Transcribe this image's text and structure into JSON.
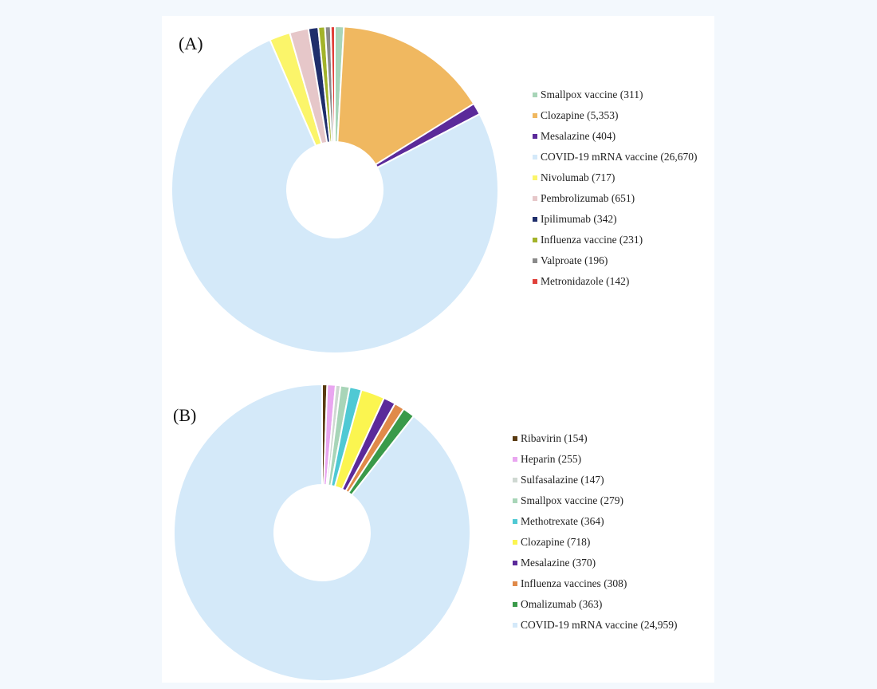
{
  "panels": {
    "a_label": "(A)",
    "b_label": "(B)"
  },
  "chart_data": [
    {
      "type": "pie",
      "donut": true,
      "panel": "(A)",
      "legend_position": "right",
      "start_angle_deg": 0,
      "direction": "clockwise",
      "slices": [
        {
          "label": "Smallpox vaccine (311)",
          "value": 311,
          "color": "#a8d5b8"
        },
        {
          "label": "Clozapine (5,353)",
          "value": 5353,
          "color": "#f0b860"
        },
        {
          "label": "Mesalazine (404)",
          "value": 404,
          "color": "#5b2a9a"
        },
        {
          "label": "COVID-19 mRNA vaccine (26,670)",
          "value": 26670,
          "color": "#d4e9f9"
        },
        {
          "label": "Nivolumab (717)",
          "value": 717,
          "color": "#fbf56a"
        },
        {
          "label": "Pembrolizumab (651)",
          "value": 651,
          "color": "#e6c7c9"
        },
        {
          "label": "Ipilimumab (342)",
          "value": 342,
          "color": "#1f2e6b"
        },
        {
          "label": "Influenza vaccine (231)",
          "value": 231,
          "color": "#a3b32a"
        },
        {
          "label": "Valproate (196)",
          "value": 196,
          "color": "#8a8a8a"
        },
        {
          "label": "Metronidazole (142)",
          "value": 142,
          "color": "#e0403a"
        }
      ]
    },
    {
      "type": "pie",
      "donut": true,
      "panel": "(B)",
      "legend_position": "right",
      "start_angle_deg": 0,
      "direction": "clockwise",
      "slices": [
        {
          "label": "Ribavirin (154)",
          "value": 154,
          "color": "#5a3b12"
        },
        {
          "label": "Heparin (255)",
          "value": 255,
          "color": "#e9a6f0"
        },
        {
          "label": "Sulfasalazine (147)",
          "value": 147,
          "color": "#cfd8d2"
        },
        {
          "label": "Smallpox vaccine (279)",
          "value": 279,
          "color": "#a8d5b8"
        },
        {
          "label": "Methotrexate (364)",
          "value": 364,
          "color": "#4fc9d4"
        },
        {
          "label": "Clozapine (718)",
          "value": 718,
          "color": "#fbf550"
        },
        {
          "label": "Mesalazine (370)",
          "value": 370,
          "color": "#5b2a9a"
        },
        {
          "label": "Influenza vaccines (308)",
          "value": 308,
          "color": "#e08a4a"
        },
        {
          "label": "Omalizumab (363)",
          "value": 363,
          "color": "#3a9a4a"
        },
        {
          "label": "COVID-19 mRNA vaccine (24,959)",
          "value": 24959,
          "color": "#d4e9f9"
        }
      ]
    }
  ]
}
